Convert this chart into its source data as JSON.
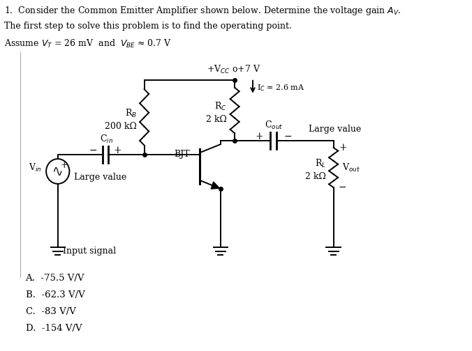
{
  "bg_color": "#ffffff",
  "fig_width": 6.76,
  "fig_height": 5.04,
  "title_line1": "1.  Consider the Common Emitter Amplifier shown below. Determine the voltage gain $A_V$.",
  "title_line2": "The first step to solve this problem is to find the operating point.",
  "title_line3": "Assume $V_T$ = 26 mV  and  $V_{BE}$ ≈ 0.7 V",
  "answer_A": "A.  -75.5 V/V",
  "answer_B": "B.  -62.3 V/V",
  "answer_C": "C.  -83 V/V",
  "answer_D": "D.  -154 V/V",
  "line_color": "#000000",
  "lw": 1.4,
  "font_size": 9.0
}
